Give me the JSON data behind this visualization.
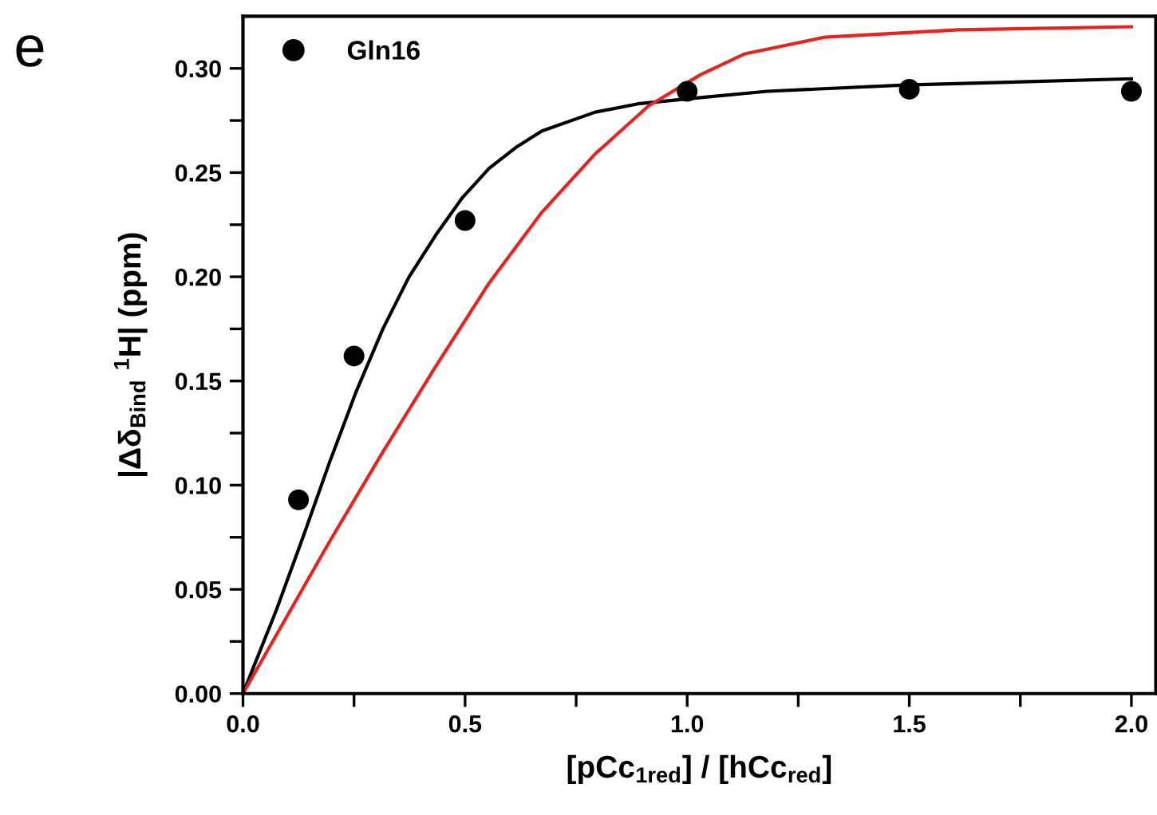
{
  "chart_data": {
    "type": "scatter",
    "xlabel": "[pCc$_{1red}$] / [hCc$_{red}$]",
    "ylabel": "|Δδ$_{Bind}$ $^{1}$H| (ppm)",
    "annotations": [
      "e"
    ],
    "series": [
      {
        "name": "Gln16",
        "color": "#000000",
        "marker": "circle",
        "x": [
          0.125,
          0.25,
          0.5,
          1.0,
          1.5,
          2.0
        ],
        "values": [
          0.093,
          0.162,
          0.227,
          0.289,
          0.29,
          0.289
        ]
      },
      {
        "type": "line",
        "color": "#000000",
        "marker": "none",
        "x": [
          0,
          0.075,
          0.135,
          0.195,
          0.255,
          0.315,
          0.374,
          0.434,
          0.494,
          0.554,
          0.614,
          0.673,
          0.793,
          0.889,
          1.03,
          1.18,
          1.49,
          2.0
        ],
        "values": [
          0,
          0.04,
          0.075,
          0.111,
          0.145,
          0.175,
          0.2,
          0.22,
          0.238,
          0.252,
          0.262,
          0.27,
          0.279,
          0.283,
          0.286,
          0.289,
          0.292,
          0.295
        ]
      },
      {
        "type": "line",
        "color": "#e8231f",
        "marker": "none",
        "x": [
          0,
          0.195,
          0.315,
          0.434,
          0.554,
          0.673,
          0.793,
          0.913,
          1.03,
          1.13,
          1.31,
          1.61,
          2.0
        ],
        "values": [
          0,
          0.073,
          0.116,
          0.157,
          0.197,
          0.231,
          0.259,
          0.282,
          0.297,
          0.307,
          0.315,
          0.3185,
          0.32
        ]
      }
    ],
    "xlim": [
      0,
      2.055
    ],
    "ylim": [
      0,
      0.325
    ],
    "xticks": [
      {
        "value": 0,
        "label": "0.0"
      },
      {
        "value": 0.25,
        "label": null
      },
      {
        "value": 0.5,
        "label": "0.5"
      },
      {
        "value": 0.75,
        "label": null
      },
      {
        "value": 1.0,
        "label": "1.0"
      },
      {
        "value": 1.25,
        "label": null
      },
      {
        "value": 1.5,
        "label": "1.5"
      },
      {
        "value": 1.75,
        "label": null
      },
      {
        "value": 2.0,
        "label": "2.0"
      }
    ],
    "yticks": [
      {
        "value": 0,
        "label": "0.00"
      },
      {
        "value": 0.025,
        "label": null
      },
      {
        "value": 0.05,
        "label": "0.05"
      },
      {
        "value": 0.075,
        "label": null
      },
      {
        "value": 0.1,
        "label": "0.10"
      },
      {
        "value": 0.125,
        "label": null
      },
      {
        "value": 0.15,
        "label": "0.15"
      },
      {
        "value": 0.175,
        "label": null
      },
      {
        "value": 0.2,
        "label": "0.20"
      },
      {
        "value": 0.225,
        "label": null
      },
      {
        "value": 0.25,
        "label": "0.25"
      },
      {
        "value": 0.275,
        "label": null
      },
      {
        "value": 0.3,
        "label": "0.30"
      }
    ],
    "grid": false,
    "legend": "top left",
    "line_style": "solid"
  }
}
